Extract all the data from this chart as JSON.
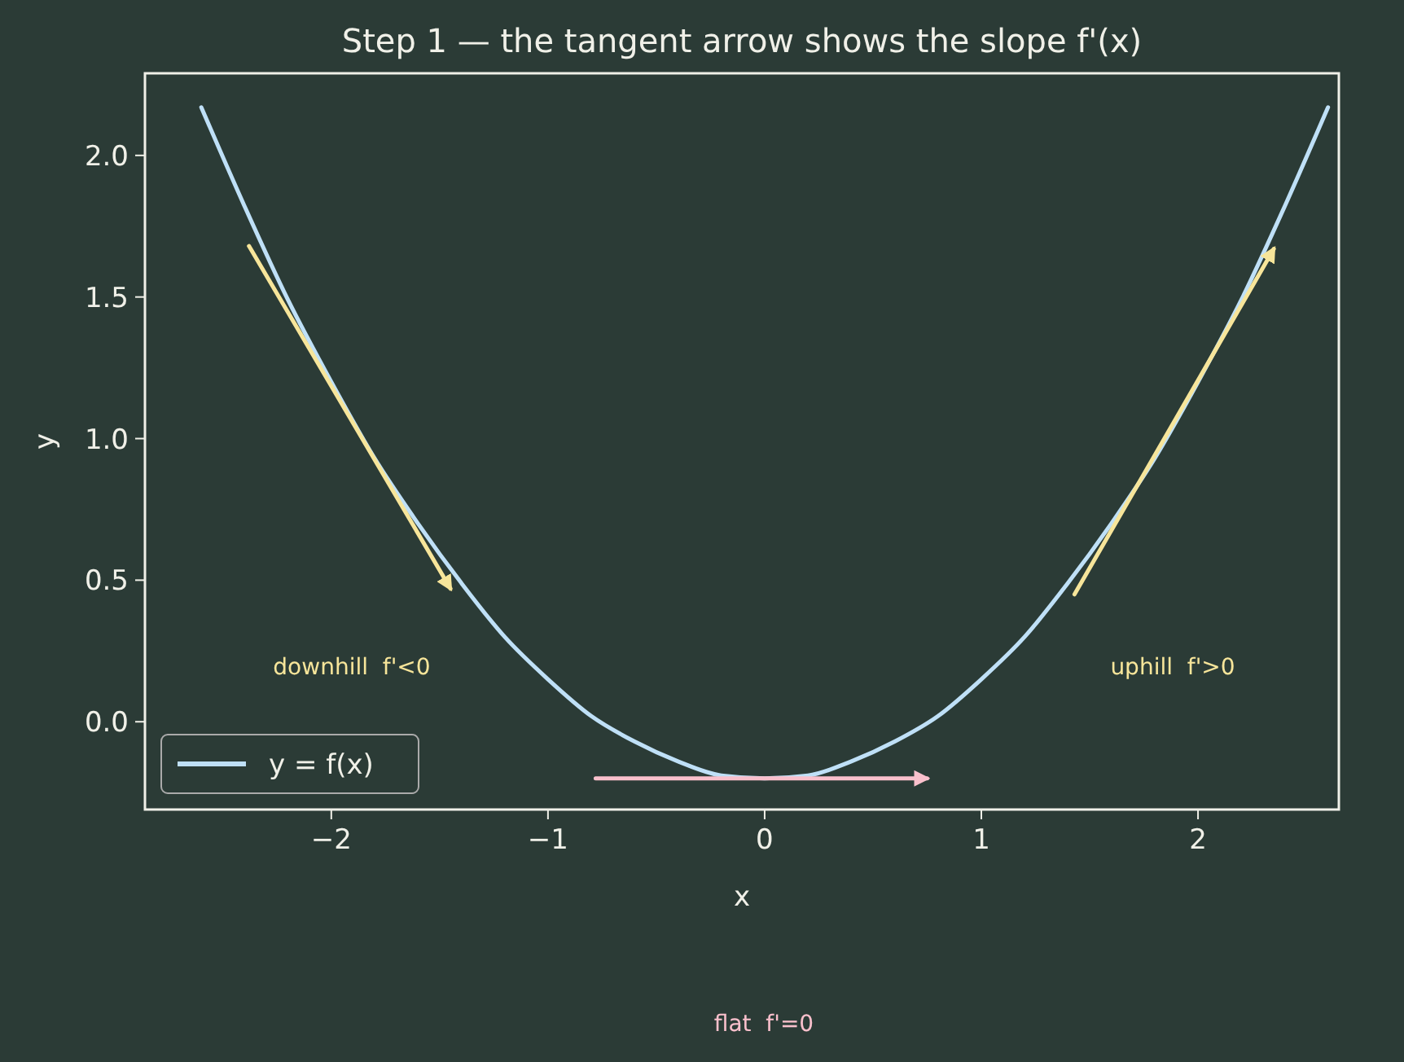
{
  "chart_data": {
    "type": "line",
    "title": "Step 1 — the tangent arrow shows the slope f'(x)",
    "xlabel": "x",
    "ylabel": "y",
    "xlim": [
      -2.86,
      2.65
    ],
    "ylim": [
      -0.31,
      2.29
    ],
    "xticks": [
      {
        "value": -2,
        "label": "−2"
      },
      {
        "value": -1,
        "label": "−1"
      },
      0,
      1,
      2
    ],
    "yticks": [
      {
        "value": 0,
        "label": "0.0"
      },
      0.5,
      {
        "value": 1,
        "label": "1.0"
      },
      1.5,
      {
        "value": 2,
        "label": "2.0"
      }
    ],
    "grid": false,
    "legend": "bottom left",
    "series": [
      {
        "name": "y = f(x)",
        "color": "#bfe0f7",
        "x": [
          -2.6,
          -2.4,
          -2.2,
          -2.0,
          -1.8,
          -1.6,
          -1.4,
          -1.2,
          -1.0,
          -0.8,
          -0.6,
          -0.4,
          -0.2,
          0,
          0.2,
          0.4,
          0.6,
          0.8,
          1.0,
          1.2,
          1.4,
          1.6,
          1.8,
          2.0,
          2.2,
          2.4,
          2.6
        ],
        "values": [
          2.17,
          1.82,
          1.49,
          1.2,
          0.93,
          0.7,
          0.49,
          0.3,
          0.15,
          0.02,
          -0.07,
          -0.14,
          -0.19,
          -0.2,
          -0.19,
          -0.14,
          -0.07,
          0.02,
          0.15,
          0.3,
          0.49,
          0.7,
          0.93,
          1.2,
          1.49,
          1.82,
          2.17
        ]
      },
      {
        "color": "#f7e59a",
        "x": [
          -2.38,
          -1.45
        ],
        "values": [
          1.68,
          0.47
        ]
      },
      {
        "color": "#f7e59a",
        "x": [
          1.43,
          2.35
        ],
        "values": [
          0.45,
          1.67
        ]
      },
      {
        "color": "#f9c0cc",
        "x": [
          -0.78,
          0.75
        ],
        "values": [
          -0.2,
          -0.2
        ]
      }
    ],
    "annotations": [
      "downhill  f'<0",
      "uphill  f'>0",
      "flat  f'=0"
    ]
  }
}
